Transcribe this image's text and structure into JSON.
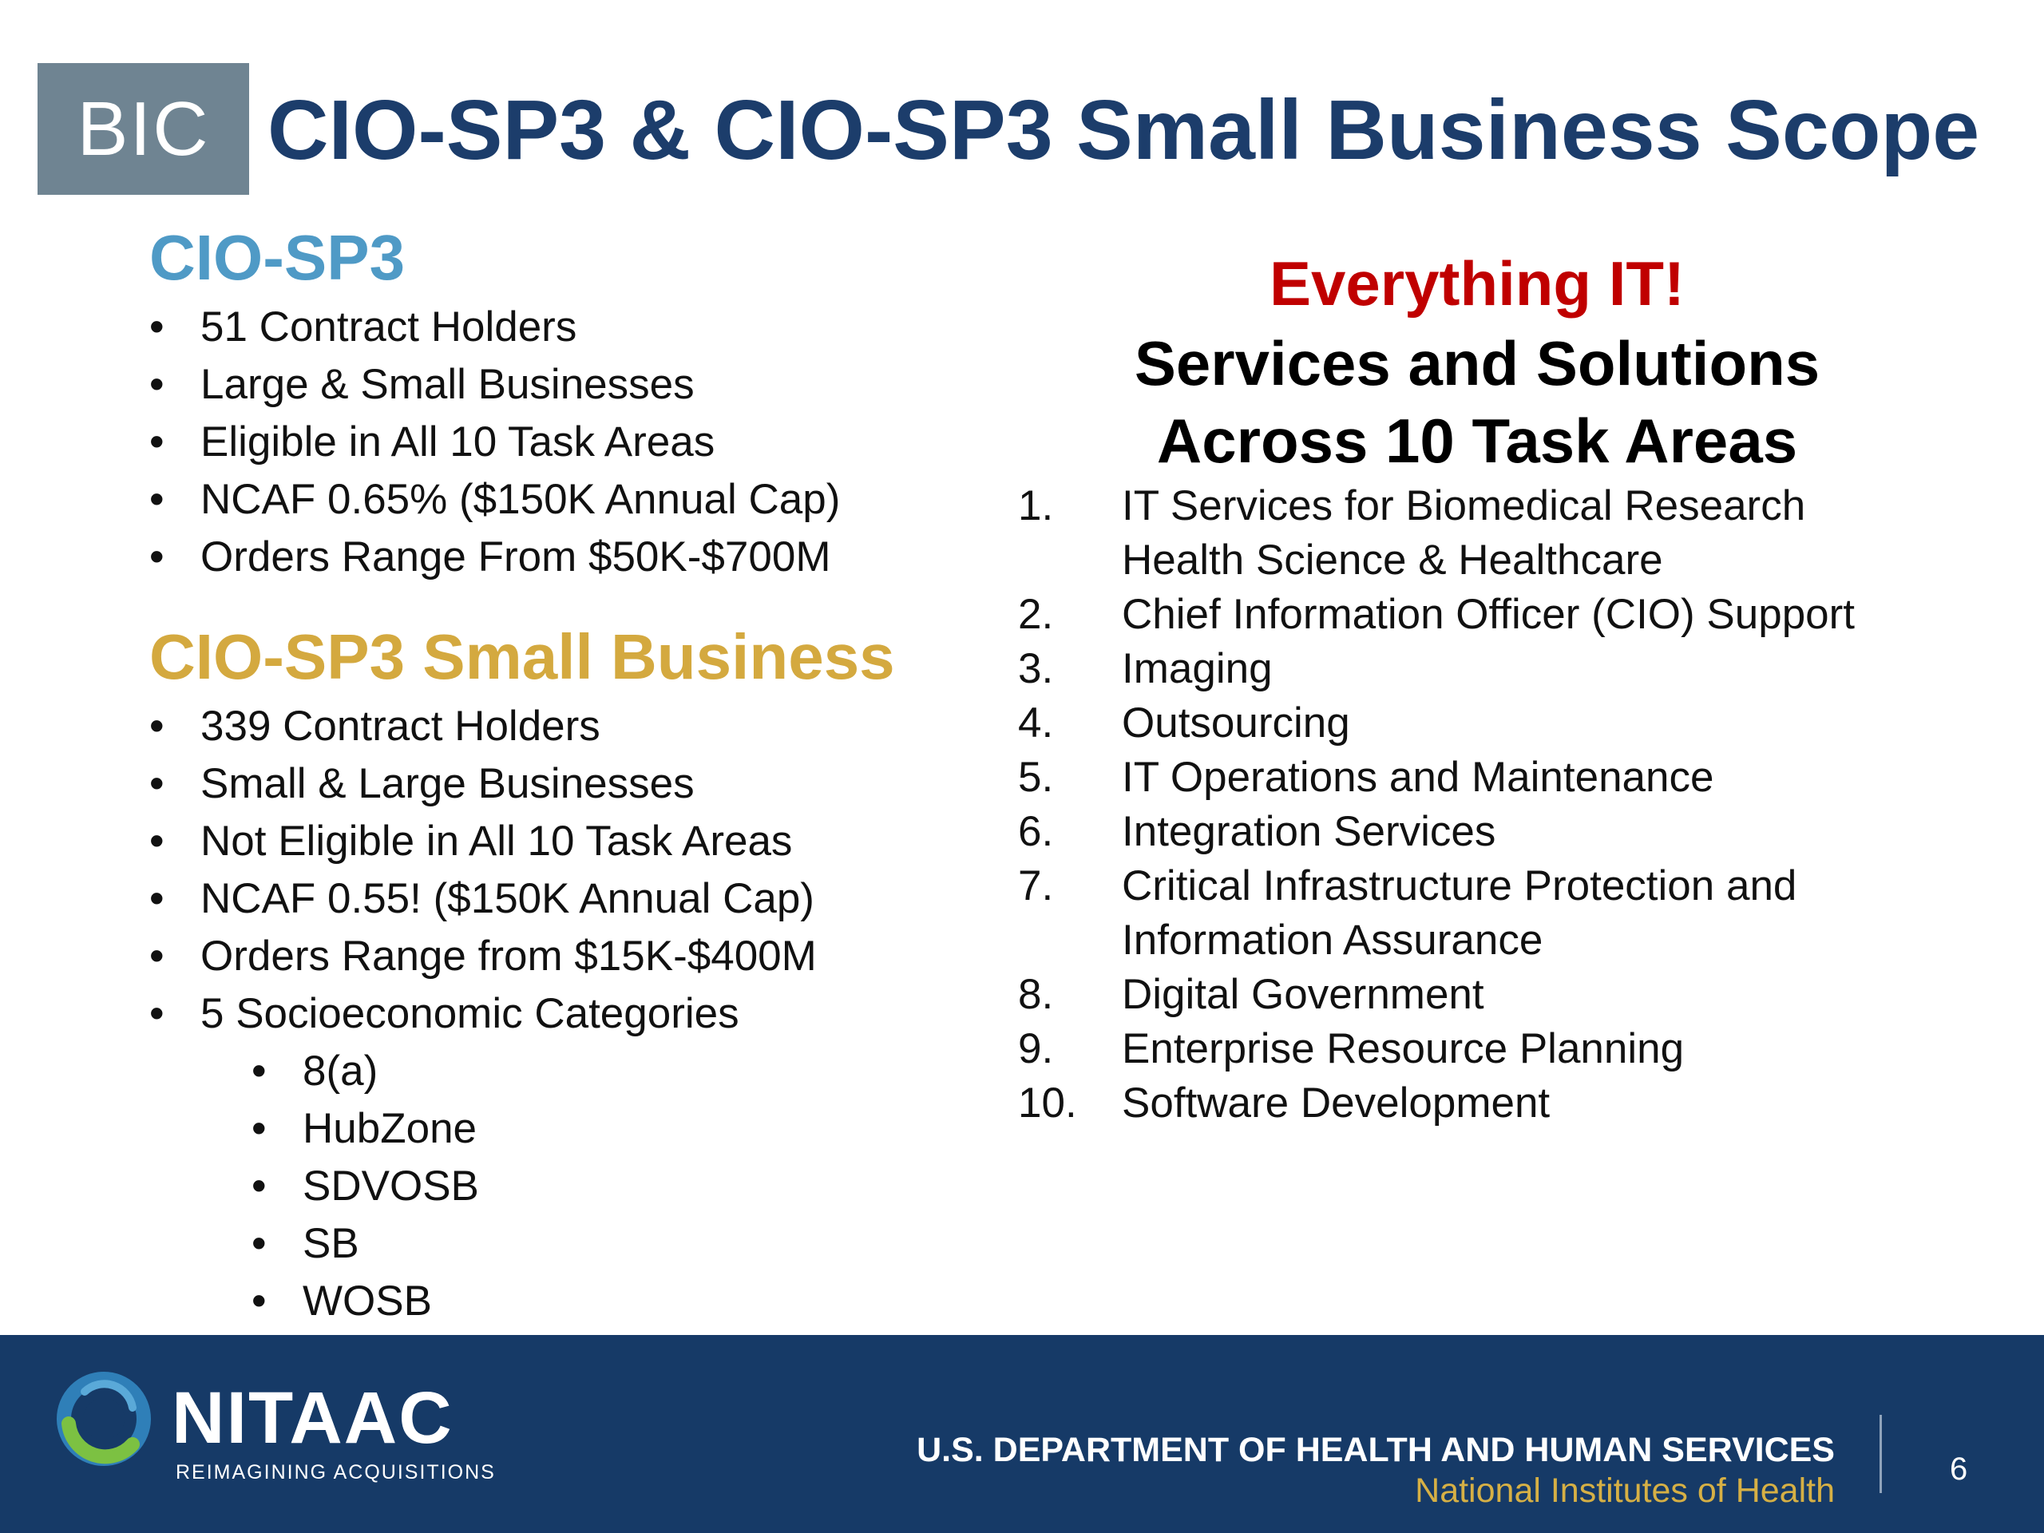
{
  "header": {
    "badge": "BIC",
    "title": "CIO-SP3 & CIO-SP3 Small Business Scope"
  },
  "left": {
    "section1": {
      "heading": "CIO-SP3",
      "heading_color": "#4f9ac6",
      "items": [
        "51 Contract Holders",
        "Large & Small Businesses",
        "Eligible in All 10 Task Areas",
        "NCAF 0.65% ($150K Annual Cap)",
        "Orders Range From $50K-$700M"
      ]
    },
    "section2": {
      "heading": "CIO-SP3 Small Business",
      "heading_color": "#d4a93f",
      "items": [
        "339 Contract Holders",
        "Small & Large Businesses",
        "Not Eligible in All 10 Task Areas",
        "NCAF 0.55! ($150K Annual Cap)",
        "Orders Range from $15K-$400M",
        "5 Socioeconomic Categories"
      ],
      "sub_items": [
        "8(a)",
        "HubZone",
        "SDVOSB",
        "SB",
        "WOSB"
      ]
    }
  },
  "right": {
    "tagline": "Everything IT!",
    "subtitle_line1": "Services and Solutions",
    "subtitle_line2": "Across 10 Task Areas",
    "tasks": [
      {
        "num": "1.",
        "line1": "IT Services for Biomedical Research",
        "line2": "Health Science & Healthcare"
      },
      {
        "num": "2.",
        "line1": "Chief Information Officer (CIO) Support"
      },
      {
        "num": "3.",
        "line1": "Imaging"
      },
      {
        "num": "4.",
        "line1": "Outsourcing"
      },
      {
        "num": "5.",
        "line1": "IT Operations and Maintenance"
      },
      {
        "num": "6.",
        "line1": "Integration Services"
      },
      {
        "num": "7.",
        "line1": "Critical Infrastructure Protection and",
        "line2": "Information Assurance"
      },
      {
        "num": "8.",
        "line1": "Digital Government"
      },
      {
        "num": "9.",
        "line1": "Enterprise Resource Planning"
      },
      {
        "num": "10.",
        "line1": "Software Development"
      }
    ]
  },
  "footer": {
    "logo_text": "NITAAC",
    "logo_tagline": "REIMAGINING ACQUISITIONS",
    "department": "U.S. DEPARTMENT OF HEALTH AND HUMAN SERVICES",
    "institute": "National Institutes of Health",
    "page_number": "6"
  }
}
